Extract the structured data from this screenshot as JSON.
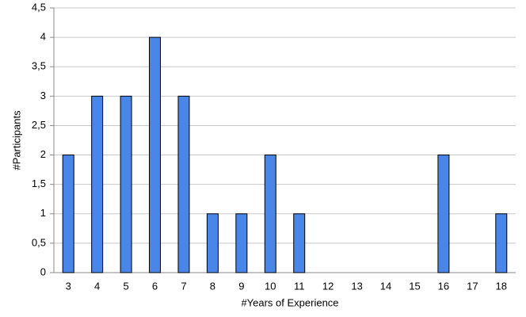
{
  "chart_data": {
    "type": "bar",
    "x_label": "#Years of Experience",
    "y_label": "#Participants",
    "categories": [
      "3",
      "4",
      "5",
      "6",
      "7",
      "8",
      "9",
      "10",
      "11",
      "12",
      "13",
      "14",
      "15",
      "16",
      "17",
      "18"
    ],
    "values": [
      2,
      3,
      3,
      4,
      3,
      1,
      1,
      2,
      1,
      0,
      0,
      0,
      0,
      2,
      0,
      1
    ],
    "color": "#4a86e8",
    "ylim": [
      0,
      4.5
    ],
    "yticks": [
      0,
      {
        "value": 0.5,
        "label": "0,5"
      },
      1,
      {
        "value": 1.5,
        "label": "1,5"
      },
      2,
      {
        "value": 2.5,
        "label": "2,5"
      },
      3,
      {
        "value": 3.5,
        "label": "3,5"
      },
      4,
      {
        "value": 4.5,
        "label": "4,5"
      }
    ],
    "grid": true
  }
}
